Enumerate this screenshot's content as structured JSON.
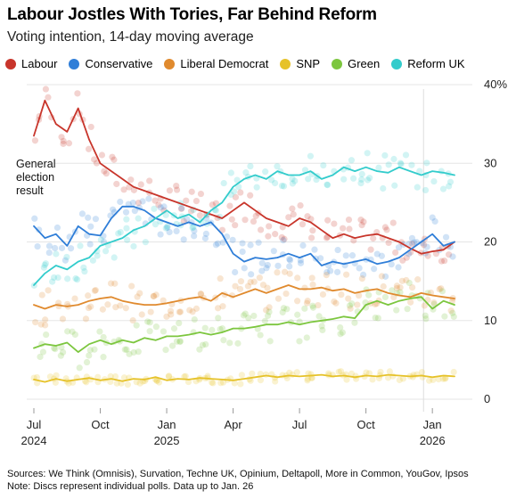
{
  "title": "Labour Jostles With Tories, Far Behind Reform",
  "subtitle": "Voting intention, 14-day moving average",
  "legend": [
    {
      "name": "Labour",
      "color": "#c8352b"
    },
    {
      "name": "Conservative",
      "color": "#2f7ed8"
    },
    {
      "name": "Liberal Democrat",
      "color": "#e08a2e"
    },
    {
      "name": "SNP",
      "color": "#e6c229"
    },
    {
      "name": "Green",
      "color": "#7cc63e"
    },
    {
      "name": "Reform UK",
      "color": "#33cccc"
    }
  ],
  "annotation": [
    "General",
    "election",
    "result"
  ],
  "footer": {
    "sources": "Sources: We Think (Omnisis), Survation, Techne UK, Opinium, Deltapoll, More in Common, YouGov, Ipsos",
    "note": "Note: Discs represent individual polls. Data up to Jan. 26"
  },
  "chart_data": {
    "type": "line",
    "x_axis": {
      "ticks": [
        "Jul 2024",
        "Oct",
        "Jan 2025",
        "Apr",
        "Jul",
        "Oct",
        "Jan 2026"
      ],
      "tick_lines": [
        [
          "Jul",
          "2024"
        ],
        [
          "Oct",
          ""
        ],
        [
          "Jan",
          "2025"
        ],
        [
          "Apr",
          ""
        ],
        [
          "Jul",
          ""
        ],
        [
          "Oct",
          ""
        ],
        [
          "Jan",
          "2026"
        ]
      ],
      "range": [
        "2024-07",
        "2026-01"
      ]
    },
    "y_axis": {
      "ticks": [
        0,
        10,
        20,
        30,
        "40%"
      ],
      "ylim": [
        0,
        40
      ],
      "position": "right"
    },
    "grid": "horizontal",
    "scatter_points_shown": true,
    "series": [
      {
        "name": "Labour",
        "color": "#c8352b",
        "x": [
          0,
          0.5,
          1,
          1.5,
          2,
          2.5,
          3,
          3.5,
          4,
          4.5,
          5,
          5.5,
          6,
          6.5,
          7,
          7.5,
          8,
          8.5,
          9,
          9.5,
          10,
          10.5,
          11,
          11.5,
          12,
          12.5,
          13,
          13.5,
          14,
          14.5,
          15,
          15.5,
          16,
          16.5,
          17,
          17.5,
          18,
          18.5,
          19
        ],
        "values": [
          33.5,
          38,
          35,
          34,
          37,
          33,
          30,
          29,
          28,
          27,
          26.5,
          26,
          25.5,
          25,
          24.5,
          24,
          23.5,
          23,
          24,
          25,
          24,
          23,
          22.5,
          22,
          23,
          22.5,
          21.5,
          20.5,
          21,
          20.5,
          20.8,
          21,
          20.5,
          20,
          19.2,
          18.5,
          18.8,
          19,
          20
        ]
      },
      {
        "name": "Conservative",
        "color": "#2f7ed8",
        "x": [
          0,
          0.5,
          1,
          1.5,
          2,
          2.5,
          3,
          3.5,
          4,
          4.5,
          5,
          5.5,
          6,
          6.5,
          7,
          7.5,
          8,
          8.5,
          9,
          9.5,
          10,
          10.5,
          11,
          11.5,
          12,
          12.5,
          13,
          13.5,
          14,
          14.5,
          15,
          15.5,
          16,
          16.5,
          17,
          17.5,
          18,
          18.5,
          19
        ],
        "values": [
          22,
          20.5,
          21,
          19.5,
          22,
          21,
          20.8,
          23,
          24.5,
          24.5,
          24,
          23,
          22.5,
          22,
          22.5,
          22,
          22.5,
          21,
          18.5,
          17.5,
          18,
          17.8,
          18,
          18.5,
          18,
          18.5,
          17,
          17.5,
          17.2,
          17.5,
          17.8,
          17.2,
          17.5,
          18,
          19,
          20,
          21,
          19.5,
          20
        ]
      },
      {
        "name": "Liberal Democrat",
        "color": "#e08a2e",
        "x": [
          0,
          0.5,
          1,
          1.5,
          2,
          2.5,
          3,
          3.5,
          4,
          4.5,
          5,
          5.5,
          6,
          6.5,
          7,
          7.5,
          8,
          8.5,
          9,
          9.5,
          10,
          10.5,
          11,
          11.5,
          12,
          12.5,
          13,
          13.5,
          14,
          14.5,
          15,
          15.5,
          16,
          16.5,
          17,
          17.5,
          18,
          18.5,
          19
        ],
        "values": [
          12,
          11.5,
          12,
          11.8,
          12,
          12.5,
          12.8,
          13,
          12.5,
          12.2,
          12,
          12,
          12.2,
          12.5,
          12.8,
          13,
          12.5,
          13.5,
          13,
          13.5,
          14,
          13.5,
          14,
          14.5,
          14,
          14,
          14.2,
          13.8,
          14,
          13.5,
          13.8,
          14,
          13.5,
          13.2,
          13,
          13.5,
          13.2,
          13,
          12.8
        ]
      },
      {
        "name": "Green",
        "color": "#7cc63e",
        "x": [
          0,
          0.5,
          1,
          1.5,
          2,
          2.5,
          3,
          3.5,
          4,
          4.5,
          5,
          5.5,
          6,
          6.5,
          7,
          7.5,
          8,
          8.5,
          9,
          9.5,
          10,
          10.5,
          11,
          11.5,
          12,
          12.5,
          13,
          13.5,
          14,
          14.5,
          15,
          15.5,
          16,
          16.5,
          17,
          17.5,
          18,
          18.5,
          19
        ],
        "values": [
          6.5,
          7,
          6.8,
          7.2,
          6,
          7,
          7.5,
          7,
          7.5,
          7.2,
          7.8,
          7.5,
          8,
          8,
          8.2,
          8.5,
          8.2,
          8.5,
          9,
          9,
          9.2,
          9.5,
          9.5,
          9.8,
          9.5,
          9.8,
          10,
          10.2,
          10.5,
          10.3,
          12,
          12.5,
          12,
          12.5,
          12.8,
          13,
          11.5,
          12.5,
          12
        ]
      },
      {
        "name": "SNP",
        "color": "#e6c229",
        "x": [
          0,
          0.5,
          1,
          1.5,
          2,
          2.5,
          3,
          3.5,
          4,
          4.5,
          5,
          5.5,
          6,
          6.5,
          7,
          7.5,
          8,
          8.5,
          9,
          9.5,
          10,
          10.5,
          11,
          11.5,
          12,
          12.5,
          13,
          13.5,
          14,
          14.5,
          15,
          15.5,
          16,
          16.5,
          17,
          17.5,
          18,
          18.5,
          19
        ],
        "values": [
          2.5,
          2.2,
          2.6,
          2.3,
          2.5,
          2.7,
          2.4,
          2.6,
          2.3,
          2.6,
          2.5,
          2.8,
          2.4,
          2.6,
          2.5,
          2.7,
          2.6,
          2.5,
          2.4,
          2.6,
          2.8,
          3,
          2.8,
          3,
          2.9,
          3,
          3.1,
          2.9,
          3,
          2.8,
          3,
          2.9,
          3.1,
          3,
          2.9,
          3,
          2.8,
          3,
          2.9
        ]
      },
      {
        "name": "Reform UK",
        "color": "#33cccc",
        "x": [
          0,
          0.5,
          1,
          1.5,
          2,
          2.5,
          3,
          3.5,
          4,
          4.5,
          5,
          5.5,
          6,
          6.5,
          7,
          7.5,
          8,
          8.5,
          9,
          9.5,
          10,
          10.5,
          11,
          11.5,
          12,
          12.5,
          13,
          13.5,
          14,
          14.5,
          15,
          15.5,
          16,
          16.5,
          17,
          17.5,
          18,
          18.5,
          19
        ],
        "values": [
          14.5,
          16,
          17,
          16.5,
          17.5,
          18,
          19.5,
          20,
          20.5,
          21.5,
          22,
          23,
          24,
          23,
          23.5,
          22.5,
          24,
          25,
          27,
          28,
          28.5,
          28,
          29,
          28.5,
          28.5,
          29,
          28,
          28.5,
          29.5,
          29,
          29.5,
          29,
          28.8,
          29.5,
          29,
          28.5,
          29,
          28.8,
          28.5
        ]
      }
    ]
  }
}
